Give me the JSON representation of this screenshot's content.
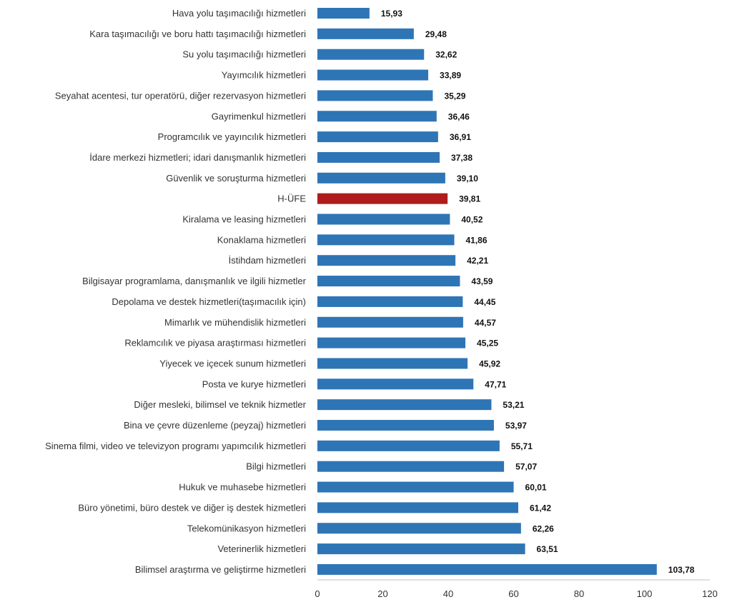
{
  "chart_data": {
    "type": "bar",
    "orientation": "horizontal",
    "title": "",
    "xlabel": "",
    "ylabel": "",
    "xlim": [
      0,
      120
    ],
    "xticks": [
      0,
      20,
      40,
      60,
      80,
      100,
      120
    ],
    "grid": false,
    "colors": {
      "default": "#2e75b6",
      "highlight": "#b01c1c"
    },
    "highlight_category": "H-ÜFE",
    "categories": [
      "Hava yolu taşımacılığı hizmetleri",
      "Kara taşımacılığı ve boru hattı taşımacılığı hizmetleri",
      "Su yolu taşımacılığı hizmetleri",
      "Yayımcılık hizmetleri",
      "Seyahat acentesi, tur operatörü, diğer rezervasyon hizmetleri",
      "Gayrimenkul hizmetleri",
      "Programcılık ve yayıncılık hizmetleri",
      "İdare merkezi hizmetleri; idari danışmanlık hizmetleri",
      "Güvenlik ve soruşturma hizmetleri",
      "H-ÜFE",
      "Kiralama ve leasing hizmetleri",
      "Konaklama hizmetleri",
      "İstihdam hizmetleri",
      "Bilgisayar programlama, danışmanlık ve ilgili hizmetler",
      "Depolama ve destek hizmetleri(taşımacılık için)",
      "Mimarlık ve mühendislik hizmetleri",
      "Reklamcılık ve piyasa araştırması hizmetleri",
      "Yiyecek ve içecek sunum hizmetleri",
      "Posta ve kurye hizmetleri",
      "Diğer mesleki, bilimsel ve teknik hizmetler",
      "Bina ve çevre düzenleme (peyzaj) hizmetleri",
      "Sinema filmi, video ve televizyon programı yapımcılık hizmetleri",
      "Bilgi hizmetleri",
      "Hukuk ve muhasebe hizmetleri",
      "Büro yönetimi, büro destek ve diğer iş destek hizmetleri",
      "Telekomünikasyon hizmetleri",
      "Veterinerlik hizmetleri",
      "Bilimsel araştırma ve geliştirme hizmetleri"
    ],
    "values": [
      15.93,
      29.48,
      32.62,
      33.89,
      35.29,
      36.46,
      36.91,
      37.38,
      39.1,
      39.81,
      40.52,
      41.86,
      42.21,
      43.59,
      44.45,
      44.57,
      45.25,
      45.92,
      47.71,
      53.21,
      53.97,
      55.71,
      57.07,
      60.01,
      61.42,
      62.26,
      63.51,
      103.78
    ],
    "value_labels": [
      "15,93",
      "29,48",
      "32,62",
      "33,89",
      "35,29",
      "36,46",
      "36,91",
      "37,38",
      "39,10",
      "39,81",
      "40,52",
      "41,86",
      "42,21",
      "43,59",
      "44,45",
      "44,57",
      "45,25",
      "45,92",
      "47,71",
      "53,21",
      "53,97",
      "55,71",
      "57,07",
      "60,01",
      "61,42",
      "62,26",
      "63,51",
      "103,78"
    ]
  }
}
